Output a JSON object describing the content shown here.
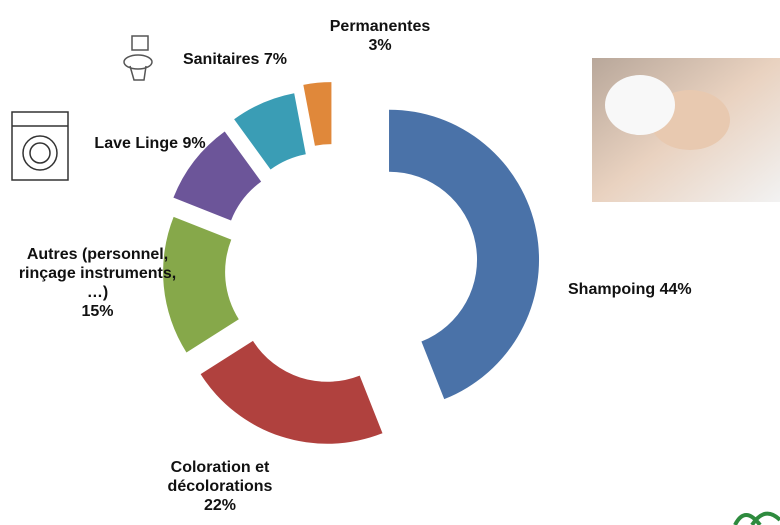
{
  "chart_data": {
    "type": "donut",
    "categories": [
      "Shampoing",
      "Coloration et décolorations",
      "Autres (personnel, rinçage instruments, …)",
      "Lave Linge",
      "Sanitaires",
      "Permanentes"
    ],
    "values": [
      44,
      22,
      15,
      9,
      7,
      3
    ],
    "value_labels": [
      "44%",
      "22%",
      "15%",
      "9%",
      "7%",
      "3%"
    ],
    "colors": [
      "#4a72a8",
      "#b0413e",
      "#86a84a",
      "#6c5599",
      "#3a9db5",
      "#e0883a"
    ]
  }
}
